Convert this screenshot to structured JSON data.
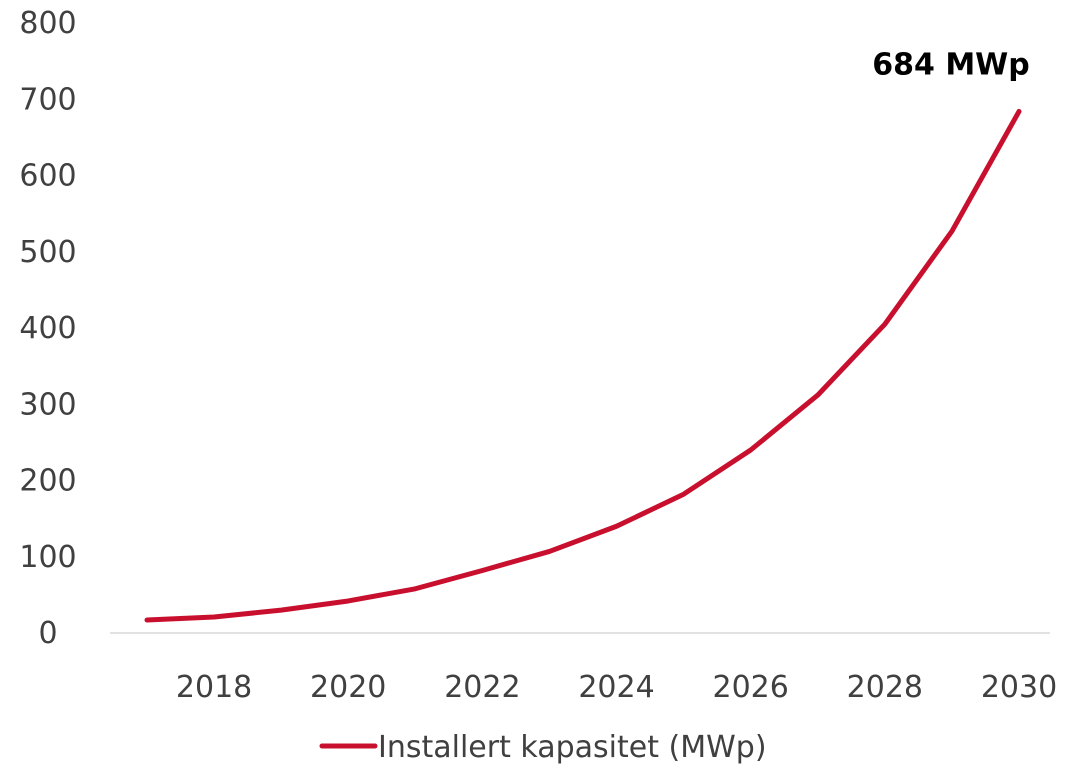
{
  "chart_data": {
    "type": "line",
    "x": [
      2017,
      2018,
      2019,
      2020,
      2021,
      2022,
      2023,
      2024,
      2025,
      2026,
      2027,
      2028,
      2029,
      2030
    ],
    "series": [
      {
        "name": "Installert kapasitet (MWp)",
        "color": "#C8102E",
        "values": [
          17,
          21,
          30,
          42,
          58,
          82,
          107,
          140,
          182,
          240,
          312,
          405,
          527,
          684
        ]
      }
    ],
    "xticks": [
      "2018",
      "2020",
      "2022",
      "2024",
      "2026",
      "2028",
      "2030"
    ],
    "yticks": [
      "0",
      "100",
      "200",
      "300",
      "400",
      "500",
      "600",
      "700",
      "800"
    ],
    "xlim": [
      2017,
      2030
    ],
    "ylim": [
      0,
      800
    ],
    "annotation": {
      "text": "684 MWp",
      "x": 2030,
      "y": 684
    },
    "grid": false,
    "legend_position": "bottom"
  }
}
